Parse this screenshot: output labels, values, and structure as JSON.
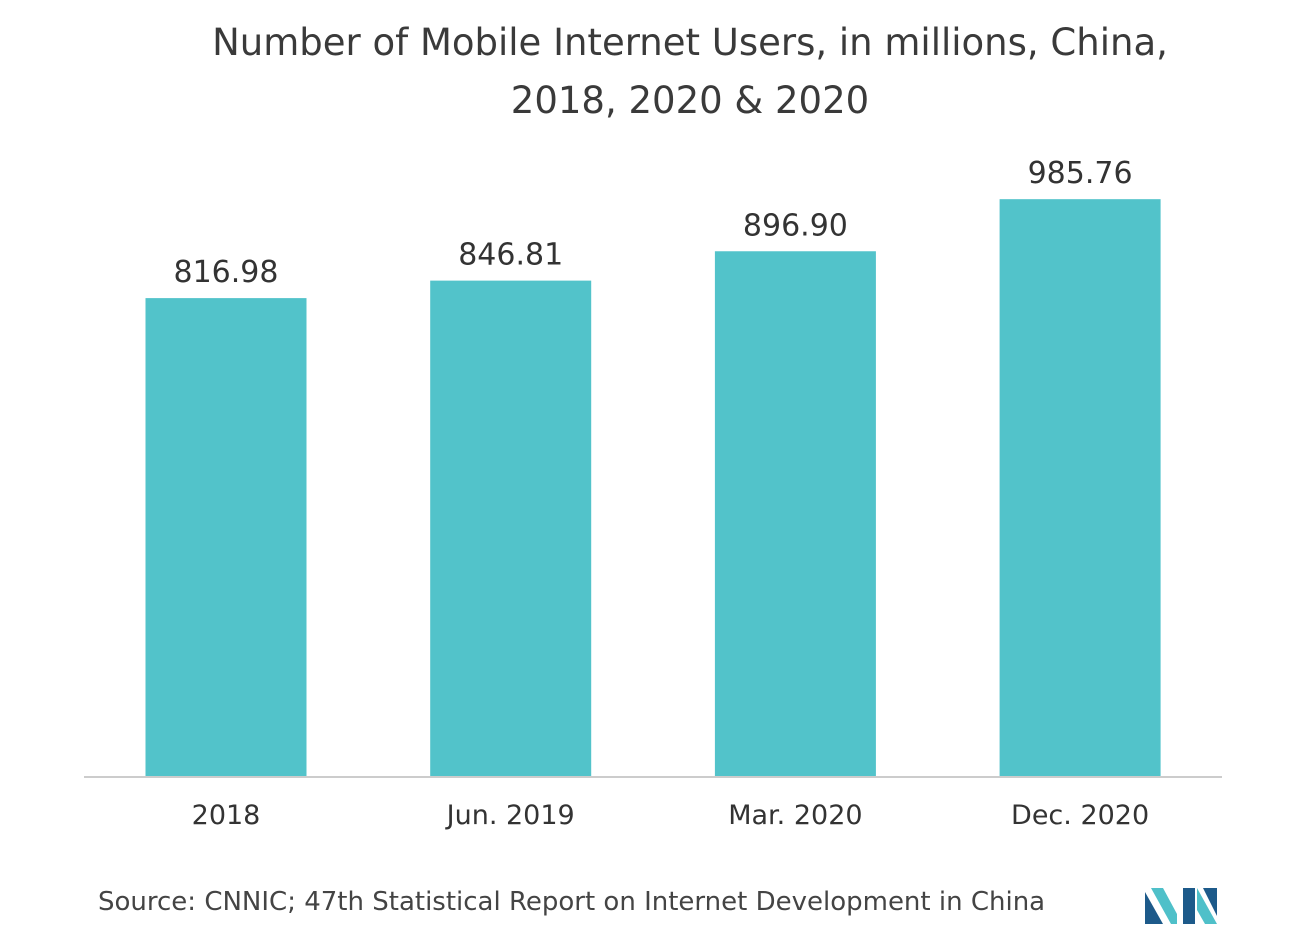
{
  "chart_data": {
    "type": "bar",
    "title": "Number of Mobile Internet Users, in millions, China,\n2018, 2020 & 2020",
    "categories": [
      "2018",
      "Jun. 2019",
      "Mar. 2020",
      "Dec. 2020"
    ],
    "values": [
      816.98,
      846.81,
      896.9,
      985.76
    ],
    "value_labels": [
      "816.98",
      "846.81",
      "896.90",
      "985.76"
    ],
    "xlabel": "",
    "ylabel": "",
    "ylim": [
      0,
      1172
    ],
    "grid": false,
    "legend": "none",
    "bar_color": "#52c3ca",
    "axis_color": "#cccccc"
  },
  "footer": {
    "source": "Source: CNNIC; 47th Statistical Report on Internet Development in China"
  },
  "logo": {
    "icon": "mordor-intelligence-logo-icon",
    "colors": [
      "#1d5a8a",
      "#4fc0c9"
    ]
  }
}
